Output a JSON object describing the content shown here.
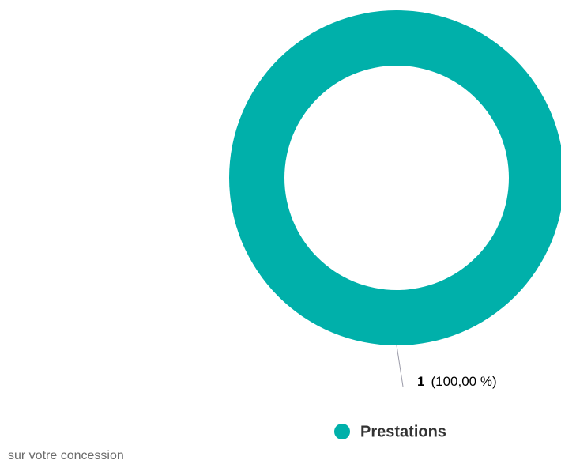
{
  "chart_data": {
    "type": "donut",
    "categories": [
      "Prestations"
    ],
    "values": [
      1
    ],
    "percentages": [
      100
    ],
    "percentage_labels": [
      "(100,00 %)"
    ],
    "colors": [
      "#00b0aa"
    ],
    "legend": "bottom",
    "footer": "sur votre concession"
  }
}
